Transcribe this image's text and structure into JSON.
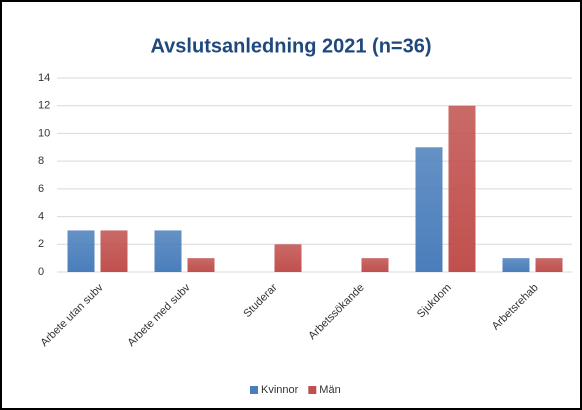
{
  "chart_data": {
    "type": "bar",
    "title": "Avslutsanledning 2021 (n=36)",
    "categories": [
      "Arbete utan subv",
      "Arbete med subv",
      "Studerar",
      "Arbetssökande",
      "Sjukdom",
      "Arbetsrehab"
    ],
    "series": [
      {
        "name": "Kvinnor",
        "color": "#4a7ebb",
        "values": [
          3,
          3,
          0,
          0,
          9,
          1
        ]
      },
      {
        "name": "Män",
        "color": "#c0504d",
        "values": [
          3,
          1,
          2,
          1,
          12,
          1
        ]
      }
    ],
    "ylim": [
      0,
      14
    ],
    "yticks": [
      0,
      2,
      4,
      6,
      8,
      10,
      12,
      14
    ],
    "grid": true,
    "legend": "bottom"
  }
}
